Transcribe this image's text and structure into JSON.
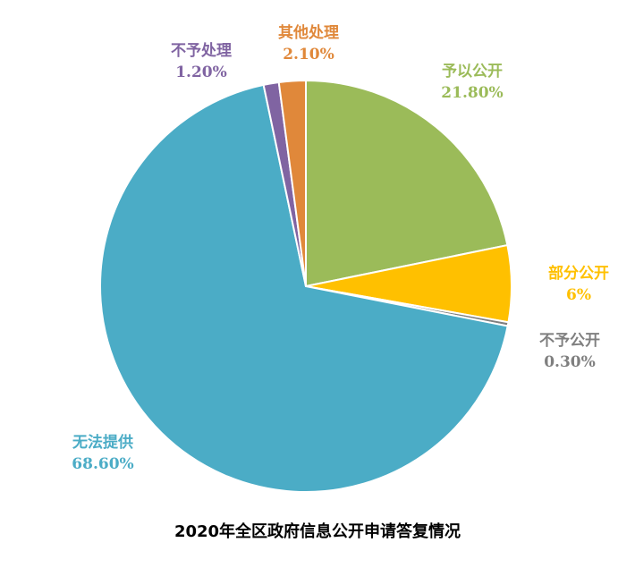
{
  "chart_data": {
    "type": "pie",
    "title": "2020年全区政府信息公开申请答复情况",
    "start_angle_deg": 0,
    "direction": "clockwise",
    "slices": [
      {
        "name": "予以公开",
        "value": 21.8,
        "label": "21.80%",
        "color": "#9BBB59"
      },
      {
        "name": "部分公开",
        "value": 6.0,
        "label": "6%",
        "color": "#FFC000"
      },
      {
        "name": "不予公开",
        "value": 0.3,
        "label": "0.30%",
        "color": "#7F7F7F"
      },
      {
        "name": "无法提供",
        "value": 68.6,
        "label": "68.60%",
        "color": "#4BACC6"
      },
      {
        "name": "不予处理",
        "value": 1.2,
        "label": "1.20%",
        "color": "#8064A2"
      },
      {
        "name": "其他处理",
        "value": 2.1,
        "label": "2.10%",
        "color": "#E0883A"
      }
    ]
  }
}
